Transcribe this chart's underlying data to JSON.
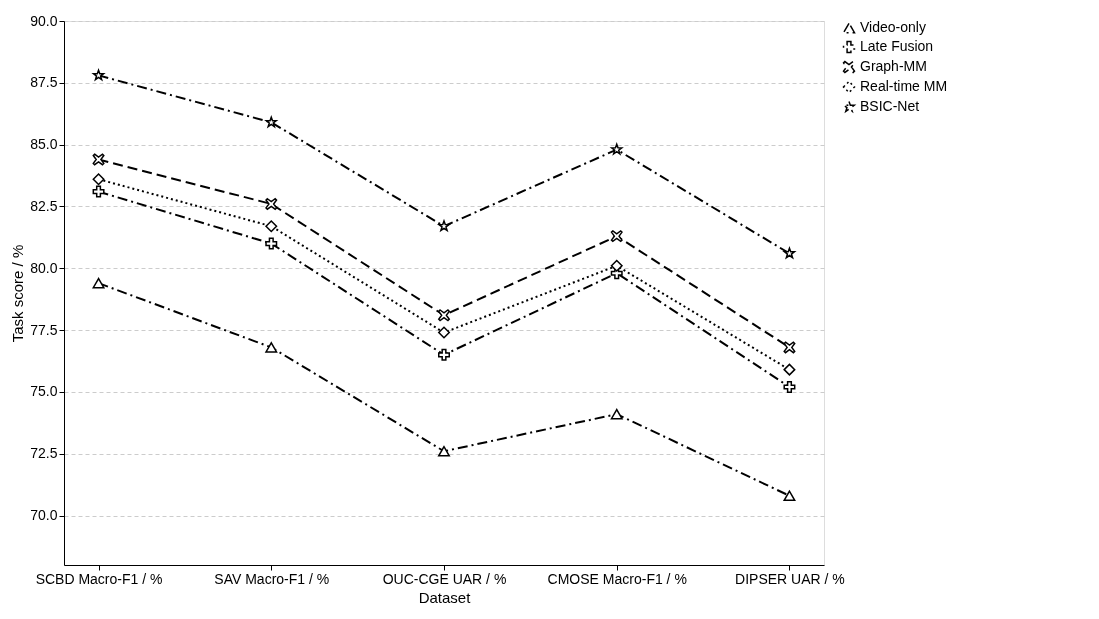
{
  "chart_data": {
    "type": "line",
    "xlabel": "Dataset",
    "ylabel": "Task score / %",
    "categories": [
      "SCBD Macro-F1 / %",
      "SAV Macro-F1 / %",
      "OUC-CGE UAR / %",
      "CMOSE Macro-F1 / %",
      "DIPSER UAR / %"
    ],
    "ylim": [
      68.0,
      90.0
    ],
    "yticks": [
      {
        "value": 70,
        "label": "70.0"
      },
      72.5,
      {
        "value": 75,
        "label": "75.0"
      },
      77.5,
      {
        "value": 80,
        "label": "80.0"
      },
      82.5,
      {
        "value": 85,
        "label": "85.0"
      },
      87.5,
      {
        "value": 90,
        "label": "90.0"
      }
    ],
    "grid": "y",
    "legend": "right",
    "series": [
      {
        "name": "Video-only",
        "color": "#000000",
        "marker": "triangle",
        "line_style": "dashdot",
        "values": [
          79.4,
          76.8,
          72.6,
          74.1,
          70.8
        ]
      },
      {
        "name": "Late Fusion",
        "color": "#000000",
        "marker": "cross",
        "line_style": "dashdot",
        "values": [
          83.1,
          81.0,
          76.5,
          79.8,
          75.2
        ]
      },
      {
        "name": "Graph-MM",
        "color": "#000000",
        "marker": "x",
        "line_style": "dashed",
        "values": [
          84.4,
          82.6,
          78.1,
          81.3,
          76.8
        ]
      },
      {
        "name": "Real-time MM",
        "color": "#000000",
        "marker": "diamond",
        "line_style": "dotted",
        "values": [
          83.6,
          81.7,
          77.4,
          80.1,
          75.9
        ]
      },
      {
        "name": "BSIC-Net",
        "color": "#000000",
        "marker": "star",
        "line_style": "dashdot",
        "values": [
          87.8,
          85.9,
          81.7,
          84.8,
          80.6
        ]
      }
    ]
  }
}
